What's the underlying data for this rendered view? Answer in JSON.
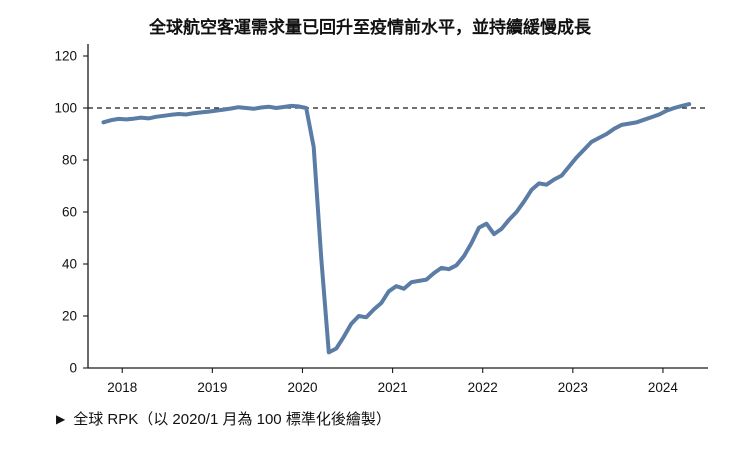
{
  "chart_data": {
    "type": "line",
    "title": "全球航空客運需求量已回升至疫情前水平，並持續緩慢成長",
    "caption_marker": "▶",
    "caption": "全球 RPK（以 2020/1 月為 100 標準化後繪製）",
    "x_tick_labels": [
      "2018",
      "2019",
      "2020",
      "2021",
      "2022",
      "2023",
      "2024"
    ],
    "y_tick_labels": [
      "0",
      "20",
      "40",
      "60",
      "80",
      "100",
      "120"
    ],
    "ylim": [
      0,
      120
    ],
    "grid": "off",
    "legend_position": "below-left",
    "axis_color": "#1a1a1a",
    "line_color": "#5b7ca5",
    "reference_line": {
      "value": 100,
      "style": "dashed",
      "color": "#1a1a1a"
    },
    "series": [
      {
        "name": "全球 RPK",
        "x": [
          "2017-10",
          "2017-11",
          "2017-12",
          "2018-01",
          "2018-02",
          "2018-03",
          "2018-04",
          "2018-05",
          "2018-06",
          "2018-07",
          "2018-08",
          "2018-09",
          "2018-10",
          "2018-11",
          "2018-12",
          "2019-01",
          "2019-02",
          "2019-03",
          "2019-04",
          "2019-05",
          "2019-06",
          "2019-07",
          "2019-08",
          "2019-09",
          "2019-10",
          "2019-11",
          "2019-12",
          "2020-01",
          "2020-02",
          "2020-03",
          "2020-04",
          "2020-05",
          "2020-06",
          "2020-07",
          "2020-08",
          "2020-09",
          "2020-10",
          "2020-11",
          "2020-12",
          "2021-01",
          "2021-02",
          "2021-03",
          "2021-04",
          "2021-05",
          "2021-06",
          "2021-07",
          "2021-08",
          "2021-09",
          "2021-10",
          "2021-11",
          "2021-12",
          "2022-01",
          "2022-02",
          "2022-03",
          "2022-04",
          "2022-05",
          "2022-06",
          "2022-07",
          "2022-08",
          "2022-09",
          "2022-10",
          "2022-11",
          "2022-12",
          "2023-01",
          "2023-02",
          "2023-03",
          "2023-04",
          "2023-05",
          "2023-06",
          "2023-07",
          "2023-08",
          "2023-09",
          "2023-10",
          "2023-11",
          "2023-12",
          "2024-01",
          "2024-02",
          "2024-03",
          "2024-04"
        ],
        "values": [
          94.5,
          95.3,
          95.8,
          95.6,
          95.9,
          96.3,
          96.0,
          96.6,
          97.0,
          97.4,
          97.7,
          97.5,
          98.0,
          98.3,
          98.6,
          99.0,
          99.4,
          99.8,
          100.3,
          100.0,
          99.7,
          100.2,
          100.5,
          100.0,
          100.4,
          100.8,
          100.6,
          100.0,
          85.0,
          42.0,
          6.0,
          7.5,
          12.0,
          17.0,
          20.0,
          19.5,
          22.5,
          25.0,
          29.5,
          31.5,
          30.5,
          33.0,
          33.5,
          34.0,
          36.5,
          38.5,
          38.0,
          39.5,
          43.0,
          48.0,
          54.0,
          55.5,
          51.5,
          53.5,
          57.0,
          60.0,
          64.0,
          68.5,
          71.0,
          70.5,
          72.5,
          74.0,
          77.5,
          81.0,
          84.0,
          87.0,
          88.5,
          90.0,
          92.0,
          93.5,
          94.0,
          94.5,
          95.5,
          96.5,
          97.5,
          99.0,
          100.0,
          100.8,
          101.5
        ]
      }
    ]
  }
}
